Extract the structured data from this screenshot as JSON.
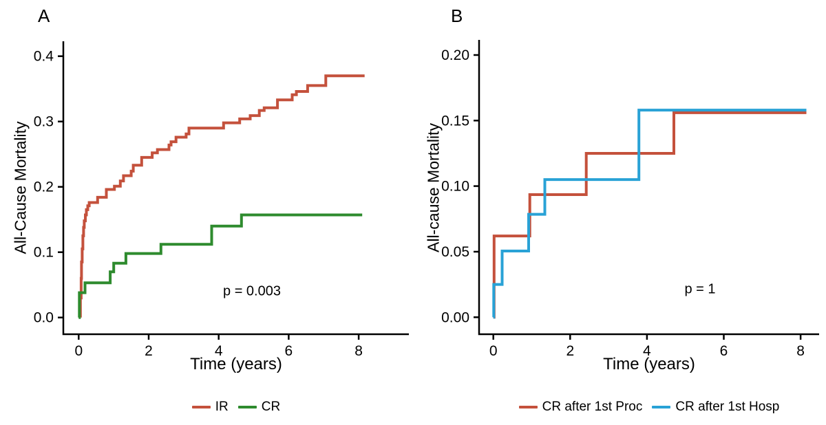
{
  "figure_title": "",
  "chart_data": [
    {
      "type": "line",
      "subtype": "kaplan-meier-step",
      "panel_label": "A",
      "xlabel": "Time (years)",
      "ylabel": "All-Cause Mortality",
      "p_value_label": "p = 0.003",
      "xlim": [
        0,
        9.4
      ],
      "ylim": [
        0,
        0.42
      ],
      "grid": "off",
      "legend_position": "bottom-center",
      "x_ticks": [
        {
          "value": 0,
          "label": "0"
        },
        {
          "value": 2,
          "label": "2"
        },
        {
          "value": 4,
          "label": "4"
        },
        {
          "value": 6,
          "label": "6"
        },
        {
          "value": 8,
          "label": "8"
        }
      ],
      "y_ticks": [
        {
          "value": 0.0,
          "label": "0.0"
        },
        {
          "value": 0.1,
          "label": "0.1"
        },
        {
          "value": 0.2,
          "label": "0.2"
        },
        {
          "value": 0.3,
          "label": "0.3"
        },
        {
          "value": 0.4,
          "label": "0.4"
        }
      ],
      "series": [
        {
          "name": "IR",
          "color": "#C4513C",
          "points": [
            [
              0.05,
              0
            ],
            [
              0.05,
              0.03
            ],
            [
              0.07,
              0.06
            ],
            [
              0.08,
              0.085
            ],
            [
              0.1,
              0.105
            ],
            [
              0.12,
              0.125
            ],
            [
              0.14,
              0.138
            ],
            [
              0.16,
              0.148
            ],
            [
              0.19,
              0.157
            ],
            [
              0.22,
              0.165
            ],
            [
              0.26,
              0.171
            ],
            [
              0.3,
              0.176
            ],
            [
              0.54,
              0.184
            ],
            [
              0.79,
              0.196
            ],
            [
              1.02,
              0.201
            ],
            [
              1.19,
              0.209
            ],
            [
              1.28,
              0.217
            ],
            [
              1.5,
              0.224
            ],
            [
              1.56,
              0.233
            ],
            [
              1.8,
              0.245
            ],
            [
              2.1,
              0.252
            ],
            [
              2.25,
              0.257
            ],
            [
              2.58,
              0.264
            ],
            [
              2.64,
              0.269
            ],
            [
              2.78,
              0.276
            ],
            [
              3.07,
              0.281
            ],
            [
              3.15,
              0.29
            ],
            [
              4.14,
              0.298
            ],
            [
              4.6,
              0.304
            ],
            [
              4.9,
              0.309
            ],
            [
              5.16,
              0.317
            ],
            [
              5.3,
              0.321
            ],
            [
              5.68,
              0.333
            ],
            [
              6.1,
              0.341
            ],
            [
              6.22,
              0.346
            ],
            [
              6.54,
              0.355
            ],
            [
              7.06,
              0.37
            ],
            [
              8.17,
              0.37
            ]
          ]
        },
        {
          "name": "CR",
          "color": "#2E8B2E",
          "points": [
            [
              0,
              0
            ],
            [
              0.02,
              0.038
            ],
            [
              0.18,
              0.053
            ],
            [
              0.9,
              0.07
            ],
            [
              1.0,
              0.083
            ],
            [
              1.35,
              0.098
            ],
            [
              2.35,
              0.112
            ],
            [
              3.8,
              0.14
            ],
            [
              4.65,
              0.157
            ],
            [
              8.1,
              0.157
            ]
          ]
        }
      ]
    },
    {
      "type": "line",
      "subtype": "kaplan-meier-step",
      "panel_label": "B",
      "xlabel": "Time (years)",
      "ylabel": "All-cause Mortality",
      "p_value_label": "p = 1",
      "xlim": [
        0,
        9.4
      ],
      "ylim": [
        0,
        0.21
      ],
      "grid": "off",
      "legend_position": "bottom-center",
      "x_ticks": [
        {
          "value": 0,
          "label": "0"
        },
        {
          "value": 2,
          "label": "2"
        },
        {
          "value": 4,
          "label": "4"
        },
        {
          "value": 6,
          "label": "6"
        },
        {
          "value": 8,
          "label": "8"
        }
      ],
      "y_ticks": [
        {
          "value": 0.0,
          "label": "0.00"
        },
        {
          "value": 0.05,
          "label": "0.05"
        },
        {
          "value": 0.1,
          "label": "0.10"
        },
        {
          "value": 0.15,
          "label": "0.15"
        },
        {
          "value": 0.2,
          "label": "0.20"
        }
      ],
      "series": [
        {
          "name": "CR after 1st Proc",
          "color": "#C4513C",
          "points": [
            [
              0,
              0
            ],
            [
              0.02,
              0.062
            ],
            [
              0.95,
              0.0935
            ],
            [
              2.42,
              0.125
            ],
            [
              4.7,
              0.156
            ],
            [
              8.15,
              0.156
            ]
          ]
        },
        {
          "name": "CR after 1st Hosp",
          "color": "#29A2D6",
          "points": [
            [
              0,
              0
            ],
            [
              0.01,
              0.025
            ],
            [
              0.23,
              0.0505
            ],
            [
              0.92,
              0.0785
            ],
            [
              1.34,
              0.105
            ],
            [
              3.79,
              0.158
            ],
            [
              8.15,
              0.158
            ]
          ]
        }
      ]
    }
  ]
}
